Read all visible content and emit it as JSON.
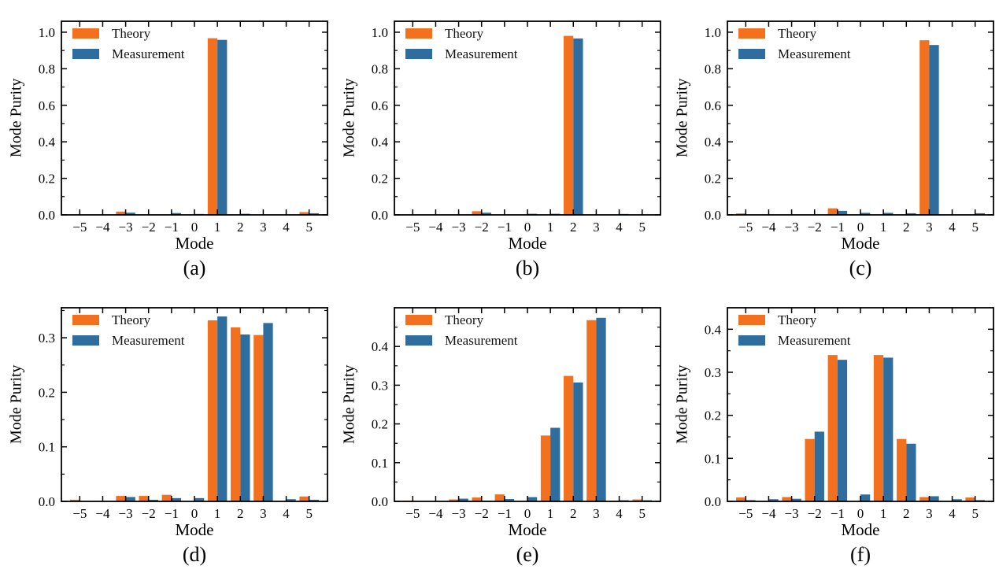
{
  "figure": {
    "background": "#ffffff",
    "legend": [
      {
        "name": "Theory",
        "color": "#f3701e"
      },
      {
        "name": "Measurement",
        "color": "#2e6d9e"
      }
    ]
  },
  "chart_data": [
    {
      "type": "bar",
      "caption": "(a)",
      "xlabel": "Mode",
      "ylabel": "Mode Purity",
      "legend_position": "upper left",
      "grid": false,
      "categories": [
        "−5",
        "−4",
        "−3",
        "−2",
        "−1",
        "0",
        "1",
        "2",
        "3",
        "4",
        "5"
      ],
      "yticks": [
        "0.0",
        "0.2",
        "0.4",
        "0.6",
        "0.8",
        "1.0"
      ],
      "ylim": [
        0,
        1.06
      ],
      "series": [
        {
          "name": "Theory",
          "values": [
            0,
            0,
            0.018,
            0,
            0.002,
            0.002,
            0.967,
            0.002,
            0,
            0,
            0.015
          ]
        },
        {
          "name": "Measurement",
          "values": [
            0,
            0,
            0.012,
            0,
            0.01,
            0.005,
            0.958,
            0.006,
            0.002,
            0,
            0.009
          ]
        }
      ]
    },
    {
      "type": "bar",
      "caption": "(b)",
      "xlabel": "Mode",
      "ylabel": "Mode Purity",
      "legend_position": "upper left",
      "grid": false,
      "categories": [
        "−5",
        "−4",
        "−3",
        "−2",
        "−1",
        "0",
        "1",
        "2",
        "3",
        "4",
        "5"
      ],
      "yticks": [
        "0.0",
        "0.2",
        "0.4",
        "0.6",
        "0.8",
        "1.0"
      ],
      "ylim": [
        0,
        1.06
      ],
      "series": [
        {
          "name": "Theory",
          "values": [
            0,
            0,
            0,
            0.02,
            0,
            0,
            0.002,
            0.98,
            0,
            0,
            0
          ]
        },
        {
          "name": "Measurement",
          "values": [
            0,
            0,
            0,
            0.012,
            0.002,
            0.006,
            0.006,
            0.966,
            0.002,
            0.005,
            0.002
          ]
        }
      ]
    },
    {
      "type": "bar",
      "caption": "(c)",
      "xlabel": "Mode",
      "ylabel": "Mode Purity",
      "legend_position": "upper left",
      "grid": false,
      "categories": [
        "−5",
        "−4",
        "−3",
        "−2",
        "−1",
        "0",
        "1",
        "2",
        "3",
        "4",
        "5"
      ],
      "yticks": [
        "0.0",
        "0.2",
        "0.4",
        "0.6",
        "0.8",
        "1.0"
      ],
      "ylim": [
        0,
        1.06
      ],
      "series": [
        {
          "name": "Theory",
          "values": [
            0.008,
            0,
            0,
            0.002,
            0.036,
            0,
            0,
            0,
            0.956,
            0,
            0
          ]
        },
        {
          "name": "Measurement",
          "values": [
            0.002,
            0,
            0,
            0.002,
            0.022,
            0.011,
            0.011,
            0.009,
            0.93,
            0,
            0.009
          ]
        }
      ]
    },
    {
      "type": "bar",
      "caption": "(d)",
      "xlabel": "Mode",
      "ylabel": "Mode Purity",
      "legend_position": "upper left",
      "grid": false,
      "categories": [
        "−5",
        "−4",
        "−3",
        "−2",
        "−1",
        "0",
        "1",
        "2",
        "3",
        "4",
        "5"
      ],
      "yticks": [
        "0.0",
        "0.1",
        "0.2",
        "0.3"
      ],
      "ylim": [
        0,
        0.355
      ],
      "series": [
        {
          "name": "Theory",
          "values": [
            0.003,
            0.001,
            0.01,
            0.01,
            0.012,
            0,
            0.332,
            0.319,
            0.305,
            0.001,
            0.009
          ]
        },
        {
          "name": "Measurement",
          "values": [
            0.001,
            0.001,
            0.008,
            0.003,
            0.006,
            0.006,
            0.339,
            0.306,
            0.327,
            0.004,
            0.003
          ]
        }
      ]
    },
    {
      "type": "bar",
      "caption": "(e)",
      "xlabel": "Mode",
      "ylabel": "Mode Purity",
      "legend_position": "upper left",
      "grid": false,
      "categories": [
        "−5",
        "−4",
        "−3",
        "−2",
        "−1",
        "0",
        "1",
        "2",
        "3",
        "4",
        "5"
      ],
      "yticks": [
        "0.0",
        "0.1",
        "0.2",
        "0.3",
        "0.4"
      ],
      "ylim": [
        0,
        0.5
      ],
      "series": [
        {
          "name": "Theory",
          "values": [
            0.002,
            0,
            0.005,
            0.01,
            0.018,
            0,
            0.17,
            0.324,
            0.468,
            0.002,
            0.005
          ]
        },
        {
          "name": "Measurement",
          "values": [
            0,
            0,
            0.007,
            0.002,
            0.006,
            0.011,
            0.19,
            0.307,
            0.474,
            0.003,
            0.003
          ]
        }
      ]
    },
    {
      "type": "bar",
      "caption": "(f)",
      "xlabel": "Mode",
      "ylabel": "Mode Purity",
      "legend_position": "upper left",
      "grid": false,
      "categories": [
        "−5",
        "−4",
        "−3",
        "−2",
        "−1",
        "0",
        "1",
        "2",
        "3",
        "4",
        "5"
      ],
      "yticks": [
        "0.0",
        "0.1",
        "0.2",
        "0.3",
        "0.4"
      ],
      "ylim": [
        0,
        0.45
      ],
      "series": [
        {
          "name": "Theory",
          "values": [
            0.009,
            0.001,
            0.01,
            0.145,
            0.34,
            0,
            0.34,
            0.145,
            0.01,
            0.001,
            0.009
          ]
        },
        {
          "name": "Measurement",
          "values": [
            0.003,
            0.005,
            0.006,
            0.162,
            0.329,
            0.016,
            0.334,
            0.134,
            0.012,
            0.005,
            0.003
          ]
        }
      ]
    }
  ]
}
